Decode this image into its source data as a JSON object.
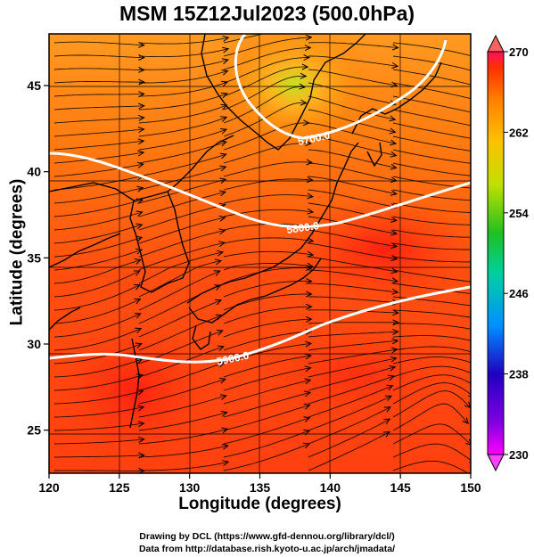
{
  "title": "MSM 15Z12Jul2023 (500.0hPa)",
  "axes": {
    "x": {
      "label": "Longitude (degrees)",
      "range": [
        120,
        150
      ],
      "ticks": [
        120,
        125,
        130,
        135,
        140,
        145,
        150
      ]
    },
    "y": {
      "label": "Latitude (degrees)",
      "range": [
        22.5,
        48
      ],
      "ticks": [
        25,
        30,
        35,
        40,
        45
      ]
    }
  },
  "colorbar": {
    "range": [
      230,
      270
    ],
    "tick_labels": [
      "270",
      "262",
      "254",
      "246",
      "238",
      "230"
    ],
    "colors": [
      "#ff00ff",
      "#2000c0",
      "#0090ff",
      "#00d0a0",
      "#20c020",
      "#c0e000",
      "#ffc000",
      "#ff8000",
      "#ff3000",
      "#ff1060"
    ]
  },
  "contours": [
    {
      "label": "5700.0"
    },
    {
      "label": "5800.0"
    },
    {
      "label": "5900.0"
    }
  ],
  "colors": {
    "field_main": "#ff5a10",
    "field_warm": "#ff3010",
    "field_cool": "#ffb030",
    "contour": "#ffffff",
    "coastline": "#000000",
    "streamline": "#000000"
  },
  "credits": {
    "line1": "Drawing by DCL (https://www.gfd-dennou.org/library/dcl/)",
    "line2": "Data from http://database.rish.kyoto-u.ac.jp/arch/jmadata/"
  }
}
